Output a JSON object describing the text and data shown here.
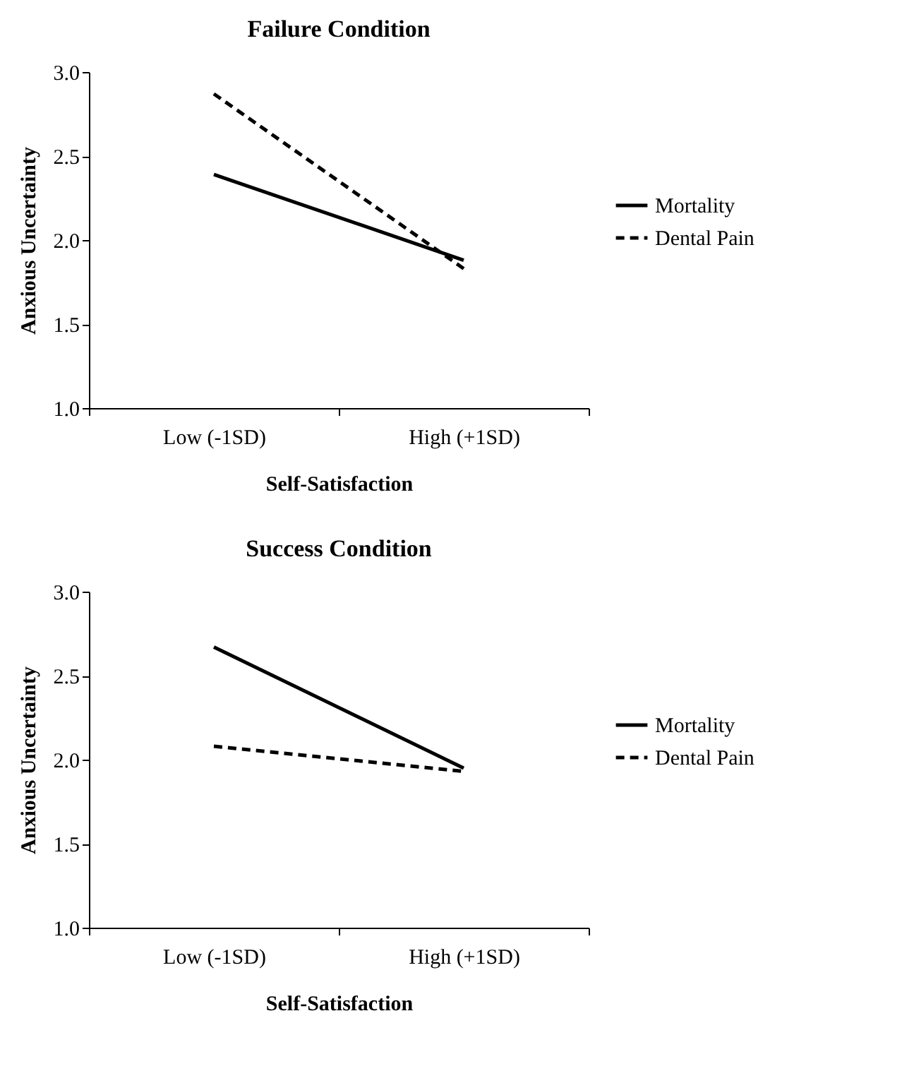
{
  "chart_data": [
    {
      "type": "line",
      "title": "Failure Condition",
      "xlabel": "Self-Satisfaction",
      "ylabel": "Anxious Uncertainty",
      "categories": [
        "Low (-1SD)",
        "High (+1SD)"
      ],
      "ylim": [
        1.0,
        3.0
      ],
      "yticks": [
        {
          "value": 1,
          "label": "1.0"
        },
        {
          "value": 1.5,
          "label": "1.5"
        },
        {
          "value": 2,
          "label": "2.0"
        },
        {
          "value": 2.5,
          "label": "2.5"
        },
        {
          "value": 3,
          "label": "3.0"
        }
      ],
      "grid": false,
      "legend": "right",
      "marker": "none",
      "series": [
        {
          "name": "Mortality",
          "color": "#000000",
          "line_style": "solid",
          "values": [
            2.39,
            1.88
          ]
        },
        {
          "name": "Dental Pain",
          "color": "#000000",
          "line_style": "dashed",
          "values": [
            2.87,
            1.83
          ]
        }
      ]
    },
    {
      "type": "line",
      "title": "Success Condition",
      "xlabel": "Self-Satisfaction",
      "ylabel": "Anxious Uncertainty",
      "categories": [
        "Low (-1SD)",
        "High (+1SD)"
      ],
      "ylim": [
        1.0,
        3.0
      ],
      "yticks": [
        {
          "value": 1,
          "label": "1.0"
        },
        {
          "value": 1.5,
          "label": "1.5"
        },
        {
          "value": 2,
          "label": "2.0"
        },
        {
          "value": 2.5,
          "label": "2.5"
        },
        {
          "value": 3,
          "label": "3.0"
        }
      ],
      "grid": false,
      "legend": "right",
      "marker": "none",
      "series": [
        {
          "name": "Mortality",
          "color": "#000000",
          "line_style": "solid",
          "values": [
            2.67,
            1.95
          ]
        },
        {
          "name": "Dental Pain",
          "color": "#000000",
          "line_style": "dashed",
          "values": [
            2.08,
            1.93
          ]
        }
      ]
    }
  ]
}
